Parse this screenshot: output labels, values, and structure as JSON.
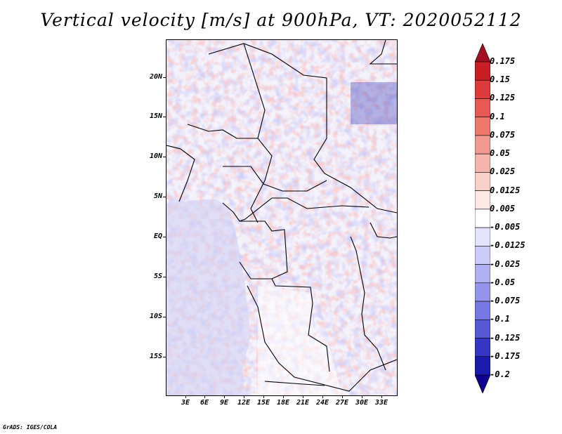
{
  "title": "Vertical velocity [m/s] at 900hPa, VT: 2020052112",
  "lat_labels": [
    "20N",
    "15N",
    "10N",
    "5N",
    "EQ",
    "5S",
    "10S",
    "15S"
  ],
  "lon_labels": [
    "3E",
    "6E",
    "9E",
    "12E",
    "15E",
    "18E",
    "21E",
    "24E",
    "27E",
    "30E",
    "33E"
  ],
  "colorbar": {
    "labels": [
      "0.175",
      "0.15",
      "0.125",
      "0.1",
      "0.075",
      "0.05",
      "0.025",
      "0.0125",
      "0.005",
      "-0.005",
      "-0.0125",
      "-0.025",
      "-0.05",
      "-0.075",
      "-0.1",
      "-0.125",
      "-0.175",
      "-0.2"
    ],
    "colors": [
      "#a01020",
      "#c81e28",
      "#dc3c3c",
      "#e65a55",
      "#ec7870",
      "#f19990",
      "#f5b4ac",
      "#f9d0ca",
      "#fce8e4",
      "#ffffff",
      "#e4e4fc",
      "#ccccf8",
      "#b0b0f2",
      "#9494ec",
      "#7878e2",
      "#5858d6",
      "#3636c4",
      "#1a1aac",
      "#100090"
    ]
  },
  "footer": "GrADS: IGES/COLA"
}
